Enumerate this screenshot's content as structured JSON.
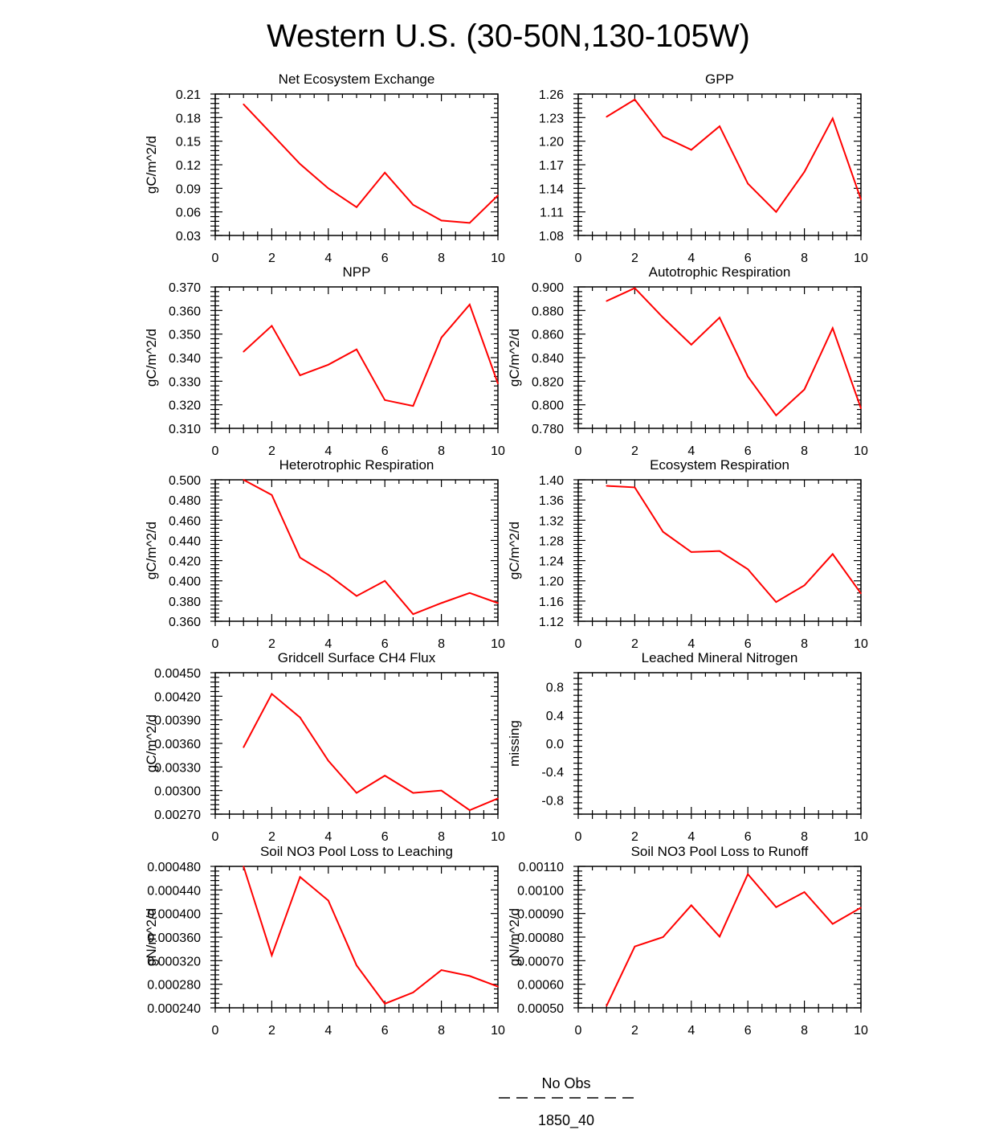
{
  "figure": {
    "title": "Western U.S. (30-50N,130-105W)",
    "legend": {
      "position": "bottom-center",
      "items": [
        {
          "label": "No Obs",
          "style": "dashed",
          "color": "#000000"
        },
        {
          "label": "1850_40",
          "style": "solid",
          "color": "#ff0000"
        }
      ]
    },
    "series_color": "#ff0000"
  },
  "chart_data": [
    {
      "type": "line",
      "title": "Net Ecosystem Exchange",
      "ylabel": "gC/m^2/d",
      "xlim": [
        0,
        10
      ],
      "ylim": [
        0.03,
        0.21
      ],
      "xticks": [
        "0",
        "2",
        "4",
        "6",
        "8",
        "10"
      ],
      "yticks": [
        "0.03",
        "0.06",
        "0.09",
        "0.12",
        "0.15",
        "0.18",
        "0.21"
      ],
      "x": [
        1,
        2,
        3,
        4,
        5,
        6,
        7,
        8,
        9,
        10
      ],
      "series": [
        {
          "name": "1850_40",
          "values": [
            0.197,
            0.159,
            0.121,
            0.09,
            0.066,
            0.11,
            0.069,
            0.049,
            0.046,
            0.081
          ]
        }
      ]
    },
    {
      "type": "line",
      "title": "GPP",
      "ylabel": "",
      "xlim": [
        0,
        10
      ],
      "ylim": [
        1.08,
        1.26
      ],
      "xticks": [
        "0",
        "2",
        "4",
        "6",
        "8",
        "10"
      ],
      "yticks": [
        "1.08",
        "1.11",
        "1.14",
        "1.17",
        "1.20",
        "1.23",
        "1.26"
      ],
      "x": [
        1,
        2,
        3,
        4,
        5,
        6,
        7,
        8,
        9,
        10
      ],
      "series": [
        {
          "name": "1850_40",
          "values": [
            1.231,
            1.253,
            1.206,
            1.189,
            1.219,
            1.146,
            1.11,
            1.161,
            1.229,
            1.126
          ]
        }
      ]
    },
    {
      "type": "line",
      "title": "NPP",
      "ylabel": "gC/m^2/d",
      "xlim": [
        0,
        10
      ],
      "ylim": [
        0.31,
        0.37
      ],
      "xticks": [
        "0",
        "2",
        "4",
        "6",
        "8",
        "10"
      ],
      "yticks": [
        "0.310",
        "0.320",
        "0.330",
        "0.340",
        "0.350",
        "0.360",
        "0.370"
      ],
      "x": [
        1,
        2,
        3,
        4,
        5,
        6,
        7,
        8,
        9,
        10
      ],
      "series": [
        {
          "name": "1850_40",
          "values": [
            0.3425,
            0.3535,
            0.3325,
            0.337,
            0.3435,
            0.322,
            0.3195,
            0.3485,
            0.3625,
            0.329
          ]
        }
      ]
    },
    {
      "type": "line",
      "title": "Autotrophic Respiration",
      "ylabel": "gC/m^2/d",
      "xlim": [
        0,
        10
      ],
      "ylim": [
        0.78,
        0.9
      ],
      "xticks": [
        "0",
        "2",
        "4",
        "6",
        "8",
        "10"
      ],
      "yticks": [
        "0.780",
        "0.800",
        "0.820",
        "0.840",
        "0.860",
        "0.880",
        "0.900"
      ],
      "x": [
        1,
        2,
        3,
        4,
        5,
        6,
        7,
        8,
        9,
        10
      ],
      "series": [
        {
          "name": "1850_40",
          "values": [
            0.888,
            0.899,
            0.874,
            0.851,
            0.874,
            0.824,
            0.791,
            0.813,
            0.865,
            0.797
          ]
        }
      ]
    },
    {
      "type": "line",
      "title": "Heterotrophic Respiration",
      "ylabel": "gC/m^2/d",
      "xlim": [
        0,
        10
      ],
      "ylim": [
        0.36,
        0.5
      ],
      "xticks": [
        "0",
        "2",
        "4",
        "6",
        "8",
        "10"
      ],
      "yticks": [
        "0.360",
        "0.380",
        "0.400",
        "0.420",
        "0.440",
        "0.460",
        "0.480",
        "0.500"
      ],
      "x": [
        1,
        2,
        3,
        4,
        5,
        6,
        7,
        8,
        9,
        10
      ],
      "series": [
        {
          "name": "1850_40",
          "values": [
            0.5,
            0.485,
            0.423,
            0.406,
            0.385,
            0.4,
            0.367,
            0.378,
            0.388,
            0.378
          ]
        }
      ]
    },
    {
      "type": "line",
      "title": "Ecosystem Respiration",
      "ylabel": "gC/m^2/d",
      "xlim": [
        0,
        10
      ],
      "ylim": [
        1.12,
        1.4
      ],
      "xticks": [
        "0",
        "2",
        "4",
        "6",
        "8",
        "10"
      ],
      "yticks": [
        "1.12",
        "1.16",
        "1.20",
        "1.24",
        "1.28",
        "1.32",
        "1.36",
        "1.40"
      ],
      "x": [
        1,
        2,
        3,
        4,
        5,
        6,
        7,
        8,
        9,
        10
      ],
      "series": [
        {
          "name": "1850_40",
          "values": [
            1.388,
            1.385,
            1.297,
            1.257,
            1.259,
            1.223,
            1.158,
            1.191,
            1.253,
            1.175
          ]
        }
      ]
    },
    {
      "type": "line",
      "title": "Gridcell Surface CH4 Flux",
      "ylabel": "gC/m^2/d",
      "xlim": [
        0,
        10
      ],
      "ylim": [
        0.0027,
        0.0045
      ],
      "xticks": [
        "0",
        "2",
        "4",
        "6",
        "8",
        "10"
      ],
      "yticks": [
        "0.00270",
        "0.00300",
        "0.00330",
        "0.00360",
        "0.00390",
        "0.00420",
        "0.00450"
      ],
      "x": [
        1,
        2,
        3,
        4,
        5,
        6,
        7,
        8,
        9,
        10
      ],
      "series": [
        {
          "name": "1850_40",
          "values": [
            0.00355,
            0.00423,
            0.00393,
            0.00338,
            0.00297,
            0.00319,
            0.00297,
            0.003,
            0.00275,
            0.0029
          ]
        }
      ]
    },
    {
      "type": "line",
      "title": "Leached Mineral Nitrogen",
      "ylabel": "missing",
      "xlim": [
        0,
        10
      ],
      "ylim": [
        -1,
        1
      ],
      "xticks": [
        "0",
        "2",
        "4",
        "6",
        "8",
        "10"
      ],
      "yticks": [
        "-0.8",
        "-0.4",
        "0.0",
        "0.4",
        "0.8"
      ],
      "x": [],
      "series": [
        {
          "name": "1850_40",
          "values": []
        }
      ]
    },
    {
      "type": "line",
      "title": "Soil NO3 Pool Loss to Leaching",
      "ylabel": "gN/m^2/d",
      "xlim": [
        0,
        10
      ],
      "ylim": [
        0.00024,
        0.00048
      ],
      "xticks": [
        "0",
        "2",
        "4",
        "6",
        "8",
        "10"
      ],
      "yticks": [
        "0.000240",
        "0.000280",
        "0.000320",
        "0.000360",
        "0.000400",
        "0.000440",
        "0.000480"
      ],
      "x": [
        1,
        2,
        3,
        4,
        5,
        6,
        7,
        8,
        9,
        10
      ],
      "series": [
        {
          "name": "1850_40",
          "values": [
            0.00048,
            0.000329,
            0.000462,
            0.000422,
            0.000312,
            0.000247,
            0.000266,
            0.000304,
            0.000294,
            0.000276
          ]
        }
      ]
    },
    {
      "type": "line",
      "title": "Soil NO3 Pool Loss to Runoff",
      "ylabel": "gN/m^2/d",
      "xlim": [
        0,
        10
      ],
      "ylim": [
        0.0005,
        0.0011
      ],
      "xticks": [
        "0",
        "2",
        "4",
        "6",
        "8",
        "10"
      ],
      "yticks": [
        "0.00050",
        "0.00060",
        "0.00070",
        "0.00080",
        "0.00090",
        "0.00100",
        "0.00110"
      ],
      "x": [
        1,
        2,
        3,
        4,
        5,
        6,
        7,
        8,
        9,
        10
      ],
      "series": [
        {
          "name": "1850_40",
          "values": [
            0.000508,
            0.00076,
            0.0008,
            0.000935,
            0.000802,
            0.001067,
            0.000927,
            0.000991,
            0.000856,
            0.000925
          ]
        }
      ]
    }
  ]
}
